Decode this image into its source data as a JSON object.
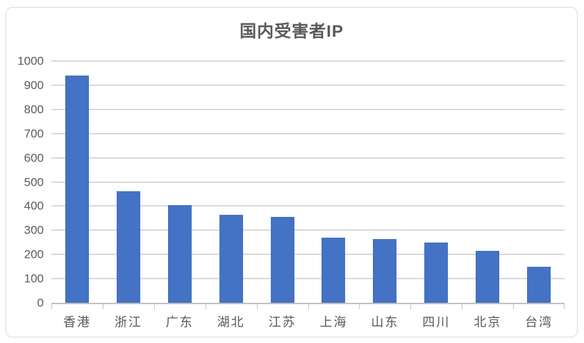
{
  "chart_data": {
    "type": "bar",
    "title": "国内受害者IP",
    "categories": [
      "香港",
      "浙江",
      "广东",
      "湖北",
      "江苏",
      "上海",
      "山东",
      "四川",
      "北京",
      "台湾"
    ],
    "values": [
      940,
      460,
      405,
      365,
      355,
      270,
      265,
      250,
      215,
      150
    ],
    "xlabel": "",
    "ylabel": "",
    "ylim": [
      0,
      1000
    ],
    "yticks": [
      0,
      100,
      200,
      300,
      400,
      500,
      600,
      700,
      800,
      900,
      1000
    ],
    "grid": true,
    "legend": false,
    "colors": {
      "bar": "#4472C4",
      "gridline": "#D9D9D9",
      "axis": "#C0C0C0",
      "labels": "#595959",
      "title": "#595959",
      "background": "#FFFFFF",
      "card_border": "#D9D9D9"
    }
  }
}
